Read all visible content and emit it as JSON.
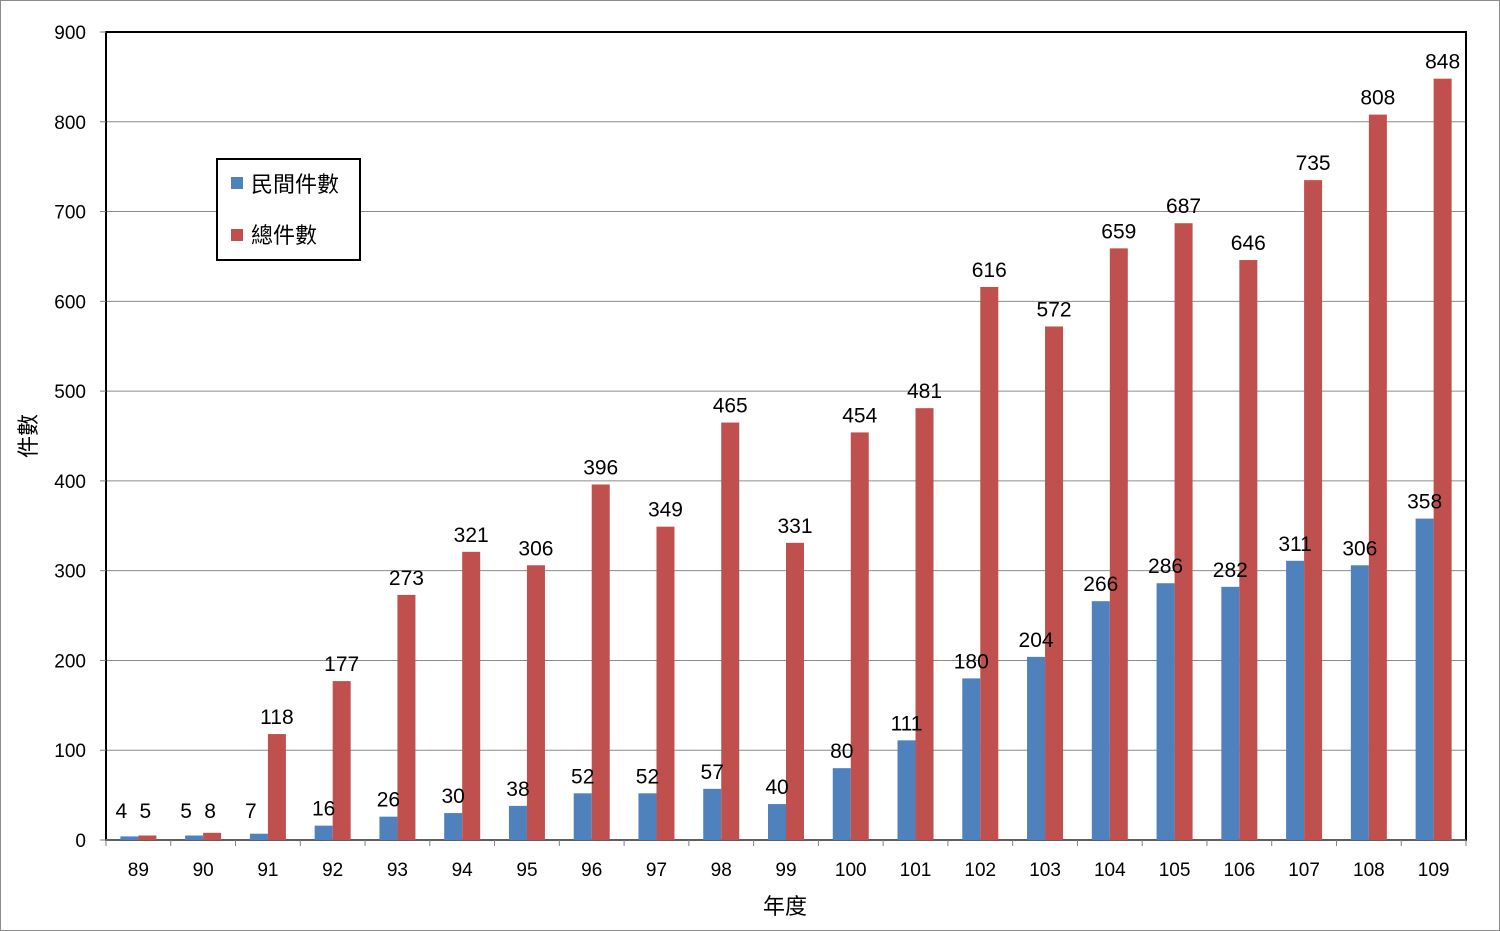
{
  "chart_data": {
    "type": "bar",
    "categories": [
      "89",
      "90",
      "91",
      "92",
      "93",
      "94",
      "95",
      "96",
      "97",
      "98",
      "99",
      "100",
      "101",
      "102",
      "103",
      "104",
      "105",
      "106",
      "107",
      "108",
      "109"
    ],
    "series": [
      {
        "name": "民間件數",
        "color": "#4f81bd",
        "values": [
          4,
          5,
          7,
          16,
          26,
          30,
          38,
          52,
          52,
          57,
          40,
          80,
          111,
          180,
          204,
          266,
          286,
          282,
          311,
          306,
          358
        ]
      },
      {
        "name": "總件數",
        "color": "#c0504d",
        "values": [
          5,
          8,
          118,
          177,
          273,
          321,
          306,
          396,
          349,
          465,
          331,
          454,
          481,
          616,
          572,
          659,
          687,
          646,
          735,
          808,
          848
        ]
      }
    ],
    "xlabel": "年度",
    "ylabel": "件數",
    "ylim": [
      0,
      900
    ],
    "yticks": [
      0,
      100,
      200,
      300,
      400,
      500,
      600,
      700,
      800,
      900
    ],
    "grid": true,
    "legend_position": "top-left"
  }
}
